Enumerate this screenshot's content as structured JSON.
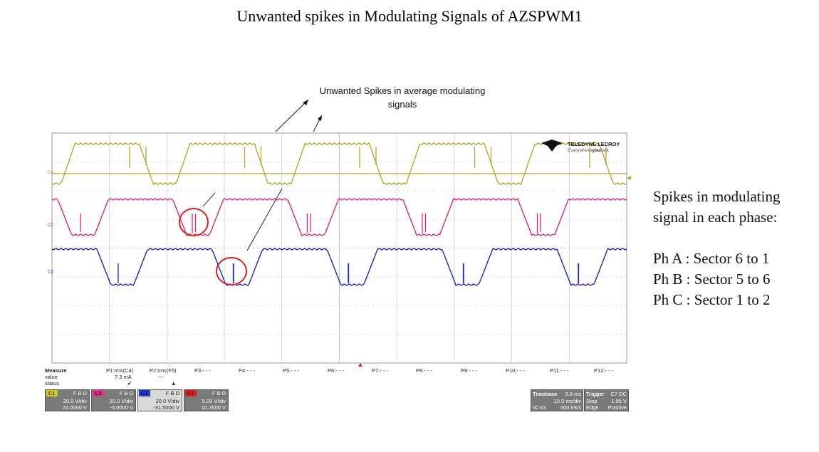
{
  "title": "Unwanted spikes in Modulating Signals of AZSPWM1",
  "annotation": {
    "line1": "Unwanted Spikes in average modulating",
    "line2": "signals"
  },
  "side_note": {
    "line1": "Spikes in modulating",
    "line2": "signal in each phase:",
    "ph_a": "Ph A : Sector 6 to 1",
    "ph_b": "Ph B : Sector 5 to 6",
    "ph_c": "Ph C : Sector 1 to 2"
  },
  "scope": {
    "brand": "TELEDYNE LECROY",
    "slogan_pre": "Everywhere",
    "slogan_mid": "you",
    "slogan_post": "look",
    "colors": {
      "c1": "#b5a82a",
      "c2": "#d9267a",
      "c3": "#1f22c8",
      "c7": "#e02020",
      "grid": "#c8c8c8",
      "annot_circle": "#e0201e"
    },
    "trace_labels": {
      "c6": "C6",
      "c2": "C2",
      "c3": "C3"
    }
  },
  "measure": {
    "label": "Measure",
    "row_value": "value",
    "row_status": "status",
    "params": [
      {
        "name": "P1:rms(C4)",
        "value": "7.3 mA",
        "status": "✔"
      },
      {
        "name": "P2:rms(F5)",
        "value": "---",
        "status": "▲"
      },
      {
        "name": "P3:- - -",
        "value": "",
        "status": ""
      },
      {
        "name": "P4:- - -",
        "value": "",
        "status": ""
      },
      {
        "name": "P5:- - -",
        "value": "",
        "status": ""
      },
      {
        "name": "P6:- - -",
        "value": "",
        "status": ""
      },
      {
        "name": "P7:- - -",
        "value": "",
        "status": ""
      },
      {
        "name": "P8:- - -",
        "value": "",
        "status": ""
      },
      {
        "name": "P9:- - -",
        "value": "",
        "status": ""
      },
      {
        "name": "P10:- - -",
        "value": "",
        "status": ""
      },
      {
        "name": "P11:- - -",
        "value": "",
        "status": ""
      },
      {
        "name": "P12:- - -",
        "value": "",
        "status": ""
      }
    ]
  },
  "channels": [
    {
      "tag": "C1",
      "flags": "F B D",
      "vdiv": "20.0 V/div",
      "offset": "24.0000 V",
      "color": "#d6c81e"
    },
    {
      "tag": "C2",
      "flags": "F B D",
      "vdiv": "20.0 V/div",
      "offset": "-5.0000 V",
      "color": "#e0308a"
    },
    {
      "tag": "C3",
      "flags": "F B D",
      "vdiv": "20.0 V/div",
      "offset": "-31.5000 V",
      "color": "#2b39d8"
    },
    {
      "tag": "C7",
      "flags": "F B D",
      "vdiv": "5.00 V/div",
      "offset": "10.3500 V",
      "color": "#e02020"
    }
  ],
  "timebase": {
    "label": "Timebase",
    "delay": "3.8 ms",
    "tdiv": "10.0 ms/div",
    "samples": "50 kS",
    "rate": "500 kS/s"
  },
  "trigger": {
    "label": "Trigger",
    "source": "C7 DC",
    "mode": "Stop",
    "level": "1.95 V",
    "type": "Edge",
    "slope": "Positive"
  }
}
